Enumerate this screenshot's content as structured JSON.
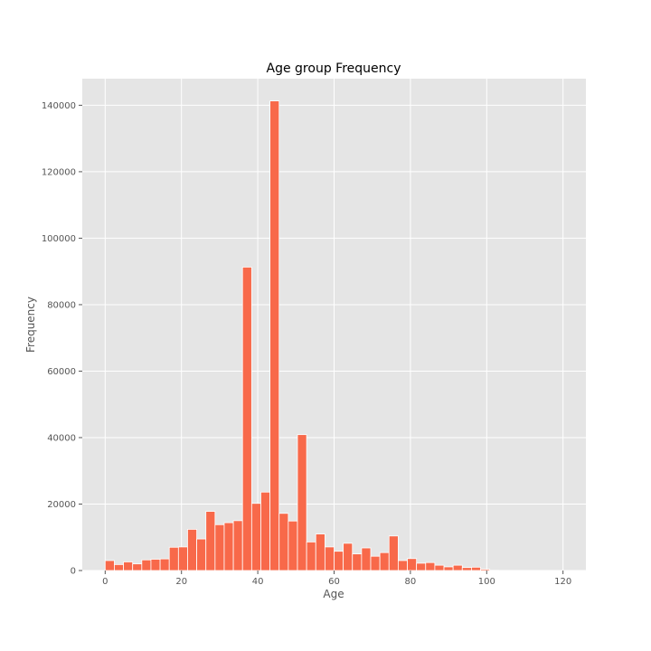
{
  "chart_data": {
    "type": "bar",
    "title": "Age group Frequency",
    "xlabel": "Age",
    "ylabel": "Frequency",
    "xlim": [
      -6,
      126
    ],
    "ylim": [
      0,
      148000
    ],
    "x_ticks": [
      0,
      20,
      40,
      60,
      80,
      100,
      120
    ],
    "y_ticks": [
      0,
      20000,
      40000,
      60000,
      80000,
      100000,
      120000,
      140000
    ],
    "grid": true,
    "bar_width": 2.4,
    "bar_color": "#f8694a",
    "background_color": "#e5e5e5",
    "grid_color": "#ffffff",
    "x": [
      1.2,
      3.6,
      6.0,
      8.4,
      10.8,
      13.2,
      15.6,
      18.0,
      20.4,
      22.8,
      25.2,
      27.6,
      30.0,
      32.4,
      34.8,
      37.2,
      39.6,
      42.0,
      44.4,
      46.8,
      49.2,
      51.6,
      54.0,
      56.4,
      58.8,
      61.2,
      63.6,
      66.0,
      68.4,
      70.8,
      73.2,
      75.6,
      78.0,
      80.4,
      82.8,
      85.2,
      87.6,
      90.0,
      92.4,
      94.8,
      97.2,
      99.6,
      102.0,
      104.4,
      106.8,
      109.2,
      111.6,
      114.0,
      116.4,
      118.8
    ],
    "values": [
      3000,
      1800,
      2600,
      2000,
      3200,
      3400,
      3500,
      7000,
      7100,
      12400,
      9500,
      17800,
      13800,
      14400,
      15000,
      91300,
      20200,
      23600,
      141300,
      17200,
      14900,
      40900,
      8600,
      11000,
      7100,
      5800,
      8200,
      5000,
      6800,
      4300,
      5400,
      10400,
      3000,
      3600,
      2200,
      2400,
      1600,
      1100,
      1600,
      900,
      1000,
      400,
      60,
      30,
      20,
      15,
      10,
      10,
      5,
      5
    ]
  }
}
